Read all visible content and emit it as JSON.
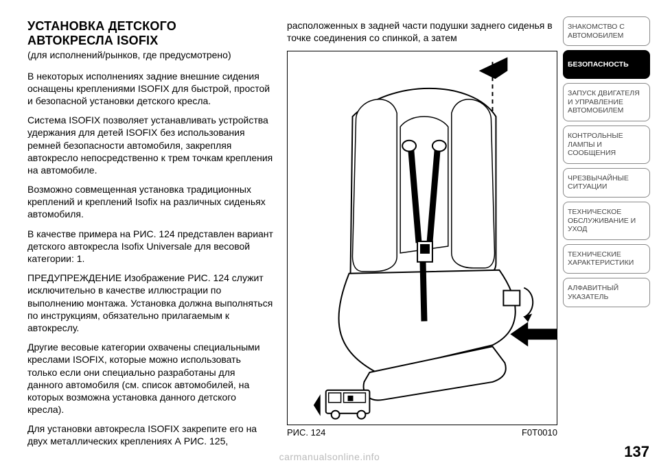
{
  "left": {
    "title_l1": "УСТАНОВКА ДЕТСКОГО",
    "title_l2": "АВТОКРЕСЛА ISOFIX",
    "subtitle": "(для исполнений/рынков, где предусмотрено)",
    "p1": "В некоторых исполнениях задние внешние сидения оснащены креплениями ISOFIX для быстрой, простой и безопасной установки детского кресла.",
    "p2": "Система ISOFIX позволяет устанавливать устройства удержания для детей ISOFIX без использования ремней безопасности автомобиля, закрепляя автокресло непосредственно к трем точкам крепления на автомобиле.",
    "p3": "Возможно совмещенная установка традиционных креплений и креплений Isofix на различных сиденьях автомобиля.",
    "p4": "В качестве примера на РИС. 124 представлен вариант детского автокресла Isofix Universale для весовой категории: 1.",
    "p5": "ПРЕДУПРЕЖДЕНИЕ Изображение РИС. 124 служит исключительно в качестве иллюстрации по выполнению монтажа. Установка должна выполняться по инструкциям, обязательно прилагаемым к автокреслу.",
    "p6": "Другие весовые категории охвачены специальными креслами ISOFIX, которые можно использовать только если они специально разработаны для данного автомобиля (см. список автомобилей, на которых возможна установка данного детского кресла).",
    "p7": "Для установки автокресла ISOFIX закрепите его на двух металлических креплениях А РИС. 125,"
  },
  "right": {
    "top": "расположенных в задней части подушки заднего сиденья в точке соединения со спинкой, а затем",
    "fig_label": "РИС. 124",
    "fig_code": "F0T0010"
  },
  "sidebar": {
    "items": [
      {
        "label": "ЗНАКОМСТВО С АВТОМОБИЛЕМ",
        "active": false
      },
      {
        "label": "БЕЗОПАСНОСТЬ",
        "active": true
      },
      {
        "label": "ЗАПУСК ДВИГАТЕЛЯ И УПРАВЛЕНИЕ АВТОМОБИЛЕМ",
        "active": false
      },
      {
        "label": "КОНТРОЛЬНЫЕ ЛАМПЫ И СООБЩЕНИЯ",
        "active": false
      },
      {
        "label": "ЧРЕЗВЫЧАЙНЫЕ СИТУАЦИИ",
        "active": false
      },
      {
        "label": "ТЕХНИЧЕСКОЕ ОБСЛУЖИВАНИЕ И УХОД",
        "active": false
      },
      {
        "label": "ТЕХНИЧЕСКИЕ ХАРАКТЕРИСТИКИ",
        "active": false
      },
      {
        "label": "АЛФАВИТНЫЙ УКАЗАТЕЛЬ",
        "active": false
      }
    ]
  },
  "page_number": "137",
  "watermark": "carmanualsonline.info",
  "figure": {
    "type": "line-illustration",
    "stroke": "#000000",
    "background": "#ffffff",
    "elements": [
      "child-seat-outline",
      "harness-straps",
      "buckle",
      "top-tether-arrow",
      "isofix-arrow-right",
      "insertion-arrow-left",
      "van-icon"
    ]
  }
}
